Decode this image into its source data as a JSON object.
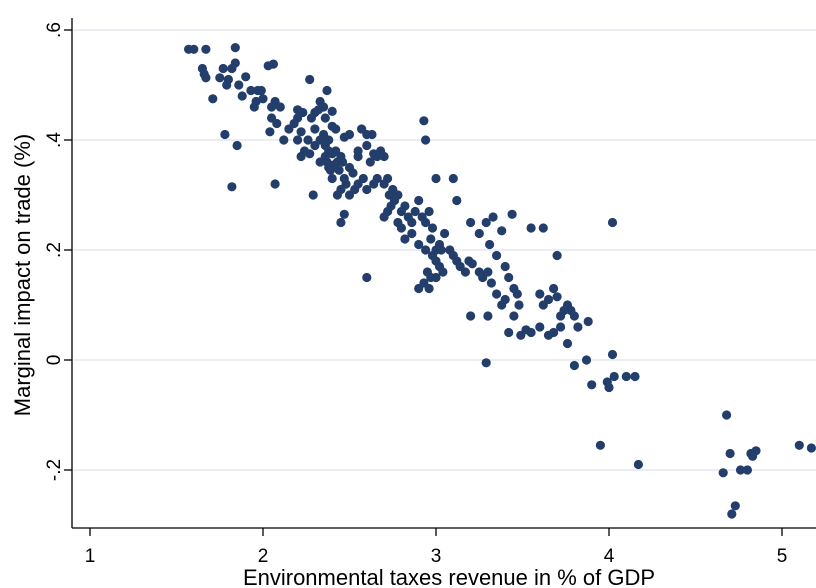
{
  "chart_data": {
    "type": "scatter",
    "xlabel": "Environmental taxes revenue in % of GDP",
    "ylabel": "Marginal impact on trade (%)",
    "xlim": [
      1,
      5.2
    ],
    "ylim": [
      -0.3,
      0.6
    ],
    "xticks": [
      1,
      2,
      3,
      4,
      5
    ],
    "xtick_labels": [
      "1",
      "2",
      "3",
      "4",
      "5"
    ],
    "yticks": [
      -0.2,
      0,
      0.2,
      0.4,
      0.6
    ],
    "ytick_labels": [
      "-.2",
      "0",
      ".2",
      ".4",
      ".6"
    ],
    "grid": "horizontal",
    "marker_color": "#233e6b",
    "series": [
      {
        "points": [
          [
            1.57,
            0.565
          ],
          [
            1.6,
            0.565
          ],
          [
            1.67,
            0.565
          ],
          [
            1.84,
            0.568
          ],
          [
            1.65,
            0.53
          ],
          [
            1.66,
            0.52
          ],
          [
            1.67,
            0.513
          ],
          [
            1.75,
            0.513
          ],
          [
            1.77,
            0.53
          ],
          [
            1.82,
            0.53
          ],
          [
            1.84,
            0.54
          ],
          [
            1.8,
            0.51
          ],
          [
            1.86,
            0.5
          ],
          [
            1.9,
            0.515
          ],
          [
            1.93,
            0.49
          ],
          [
            1.97,
            0.49
          ],
          [
            1.99,
            0.49
          ],
          [
            2.0,
            0.475
          ],
          [
            2.03,
            0.535
          ],
          [
            2.06,
            0.538
          ],
          [
            1.71,
            0.475
          ],
          [
            1.79,
            0.5
          ],
          [
            1.88,
            0.48
          ],
          [
            1.95,
            0.46
          ],
          [
            1.96,
            0.47
          ],
          [
            2.05,
            0.46
          ],
          [
            2.07,
            0.47
          ],
          [
            2.1,
            0.46
          ],
          [
            2.05,
            0.44
          ],
          [
            2.08,
            0.43
          ],
          [
            2.04,
            0.415
          ],
          [
            2.12,
            0.4
          ],
          [
            2.15,
            0.42
          ],
          [
            2.18,
            0.43
          ],
          [
            2.2,
            0.4
          ],
          [
            2.22,
            0.415
          ],
          [
            2.2,
            0.44
          ],
          [
            2.2,
            0.455
          ],
          [
            2.23,
            0.45
          ],
          [
            2.28,
            0.44
          ],
          [
            2.3,
            0.45
          ],
          [
            2.3,
            0.42
          ],
          [
            2.27,
            0.51
          ],
          [
            2.36,
            0.44
          ],
          [
            2.37,
            0.49
          ],
          [
            2.32,
            0.455
          ],
          [
            2.35,
            0.46
          ],
          [
            2.33,
            0.47
          ],
          [
            2.4,
            0.452
          ],
          [
            2.4,
            0.425
          ],
          [
            2.26,
            0.4
          ],
          [
            2.24,
            0.38
          ],
          [
            2.22,
            0.37
          ],
          [
            2.27,
            0.375
          ],
          [
            2.3,
            0.39
          ],
          [
            2.33,
            0.4
          ],
          [
            2.35,
            0.41
          ],
          [
            2.36,
            0.39
          ],
          [
            2.38,
            0.4
          ],
          [
            2.42,
            0.38
          ],
          [
            2.45,
            0.37
          ],
          [
            2.47,
            0.405
          ],
          [
            2.5,
            0.41
          ],
          [
            2.42,
            0.42
          ],
          [
            2.37,
            0.36
          ],
          [
            2.38,
            0.35
          ],
          [
            2.33,
            0.36
          ],
          [
            2.36,
            0.37
          ],
          [
            2.38,
            0.38
          ],
          [
            2.4,
            0.375
          ],
          [
            2.41,
            0.355
          ],
          [
            2.43,
            0.36
          ],
          [
            2.39,
            0.345
          ],
          [
            2.4,
            0.33
          ],
          [
            2.44,
            0.345
          ],
          [
            2.46,
            0.36
          ],
          [
            2.5,
            0.35
          ],
          [
            2.52,
            0.34
          ],
          [
            2.55,
            0.37
          ],
          [
            2.55,
            0.38
          ],
          [
            2.6,
            0.39
          ],
          [
            2.62,
            0.36
          ],
          [
            2.64,
            0.375
          ],
          [
            2.66,
            0.37
          ],
          [
            2.6,
            0.41
          ],
          [
            2.57,
            0.42
          ],
          [
            2.63,
            0.41
          ],
          [
            2.68,
            0.38
          ],
          [
            2.7,
            0.37
          ],
          [
            2.72,
            0.33
          ],
          [
            2.66,
            0.33
          ],
          [
            2.64,
            0.32
          ],
          [
            2.6,
            0.31
          ],
          [
            2.58,
            0.33
          ],
          [
            2.55,
            0.32
          ],
          [
            2.53,
            0.31
          ],
          [
            2.5,
            0.3
          ],
          [
            2.48,
            0.32
          ],
          [
            2.45,
            0.31
          ],
          [
            2.43,
            0.3
          ],
          [
            2.47,
            0.33
          ],
          [
            2.7,
            0.32
          ],
          [
            2.73,
            0.3
          ],
          [
            2.75,
            0.31
          ],
          [
            2.76,
            0.29
          ],
          [
            2.78,
            0.3
          ],
          [
            2.74,
            0.28
          ],
          [
            2.72,
            0.27
          ],
          [
            2.7,
            0.26
          ],
          [
            2.78,
            0.25
          ],
          [
            2.8,
            0.27
          ],
          [
            2.82,
            0.28
          ],
          [
            2.84,
            0.26
          ],
          [
            2.86,
            0.25
          ],
          [
            2.88,
            0.27
          ],
          [
            2.9,
            0.29
          ],
          [
            2.92,
            0.26
          ],
          [
            2.94,
            0.25
          ],
          [
            2.96,
            0.27
          ],
          [
            2.98,
            0.24
          ],
          [
            2.97,
            0.22
          ],
          [
            3.0,
            0.2
          ],
          [
            3.02,
            0.21
          ],
          [
            3.03,
            0.2
          ],
          [
            3.05,
            0.23
          ],
          [
            2.8,
            0.24
          ],
          [
            2.82,
            0.22
          ],
          [
            2.86,
            0.23
          ],
          [
            2.9,
            0.21
          ],
          [
            2.94,
            0.2
          ],
          [
            2.98,
            0.19
          ],
          [
            3.0,
            0.18
          ],
          [
            3.02,
            0.17
          ],
          [
            3.04,
            0.16
          ],
          [
            2.97,
            0.15
          ],
          [
            2.95,
            0.16
          ],
          [
            2.93,
            0.14
          ],
          [
            2.9,
            0.13
          ],
          [
            2.96,
            0.13
          ],
          [
            3.0,
            0.15
          ],
          [
            3.08,
            0.2
          ],
          [
            3.1,
            0.19
          ],
          [
            3.12,
            0.18
          ],
          [
            3.14,
            0.17
          ],
          [
            3.17,
            0.16
          ],
          [
            3.19,
            0.18
          ],
          [
            3.21,
            0.175
          ],
          [
            3.25,
            0.16
          ],
          [
            3.27,
            0.15
          ],
          [
            3.3,
            0.16
          ],
          [
            2.93,
            0.435
          ],
          [
            2.94,
            0.4
          ],
          [
            3.0,
            0.33
          ],
          [
            3.1,
            0.33
          ],
          [
            3.12,
            0.29
          ],
          [
            3.2,
            0.25
          ],
          [
            3.25,
            0.23
          ],
          [
            3.29,
            0.25
          ],
          [
            3.31,
            0.21
          ],
          [
            3.33,
            0.26
          ],
          [
            3.38,
            0.235
          ],
          [
            3.44,
            0.265
          ],
          [
            3.35,
            0.19
          ],
          [
            3.4,
            0.17
          ],
          [
            3.42,
            0.15
          ],
          [
            3.45,
            0.13
          ],
          [
            3.47,
            0.12
          ],
          [
            3.32,
            0.14
          ],
          [
            3.35,
            0.12
          ],
          [
            3.38,
            0.1
          ],
          [
            3.4,
            0.11
          ],
          [
            3.45,
            0.08
          ],
          [
            3.48,
            0.1
          ],
          [
            3.55,
            0.24
          ],
          [
            3.62,
            0.24
          ],
          [
            3.6,
            0.12
          ],
          [
            3.62,
            0.1
          ],
          [
            3.65,
            0.11
          ],
          [
            3.68,
            0.13
          ],
          [
            3.7,
            0.115
          ],
          [
            3.72,
            0.08
          ],
          [
            3.74,
            0.09
          ],
          [
            3.76,
            0.1
          ],
          [
            3.78,
            0.09
          ],
          [
            3.8,
            0.08
          ],
          [
            3.82,
            0.06
          ],
          [
            3.7,
            0.19
          ],
          [
            3.68,
            0.05
          ],
          [
            3.65,
            0.045
          ],
          [
            3.6,
            0.06
          ],
          [
            3.55,
            0.05
          ],
          [
            3.52,
            0.055
          ],
          [
            3.49,
            0.045
          ],
          [
            3.42,
            0.05
          ],
          [
            3.3,
            0.08
          ],
          [
            3.2,
            0.08
          ],
          [
            3.88,
            0.07
          ],
          [
            3.72,
            0.06
          ],
          [
            3.76,
            0.03
          ],
          [
            3.8,
            -0.01
          ],
          [
            3.87,
            0.0
          ],
          [
            3.9,
            -0.045
          ],
          [
            3.95,
            -0.155
          ],
          [
            3.99,
            -0.04
          ],
          [
            4.0,
            -0.05
          ],
          [
            4.02,
            0.01
          ],
          [
            4.03,
            -0.03
          ],
          [
            4.02,
            0.25
          ],
          [
            4.1,
            -0.03
          ],
          [
            4.15,
            -0.03
          ],
          [
            4.17,
            -0.19
          ],
          [
            3.29,
            -0.005
          ],
          [
            1.82,
            0.315
          ],
          [
            1.78,
            0.41
          ],
          [
            1.85,
            0.39
          ],
          [
            2.07,
            0.32
          ],
          [
            2.29,
            0.3
          ],
          [
            2.45,
            0.25
          ],
          [
            2.6,
            0.15
          ],
          [
            2.47,
            0.265
          ],
          [
            4.66,
            -0.205
          ],
          [
            4.68,
            -0.1
          ],
          [
            4.7,
            -0.17
          ],
          [
            4.71,
            -0.28
          ],
          [
            4.73,
            -0.265
          ],
          [
            4.76,
            -0.2
          ],
          [
            4.8,
            -0.2
          ],
          [
            4.82,
            -0.17
          ],
          [
            4.83,
            -0.175
          ],
          [
            4.85,
            -0.165
          ],
          [
            5.1,
            -0.155
          ],
          [
            5.17,
            -0.16
          ]
        ]
      }
    ]
  }
}
